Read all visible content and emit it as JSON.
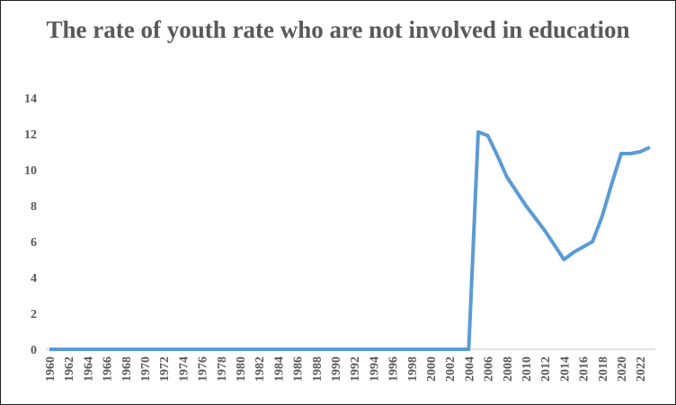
{
  "chart_data": {
    "type": "line",
    "title": "The rate of youth rate who are not involved in education",
    "xlabel": "",
    "ylabel": "",
    "ylim": [
      0,
      14
    ],
    "yticks": [
      0,
      2,
      4,
      6,
      8,
      10,
      12,
      14
    ],
    "xlim": [
      1960,
      2023
    ],
    "xtick_labels": [
      "1960",
      "1962",
      "1964",
      "1966",
      "1968",
      "1970",
      "1972",
      "1974",
      "1976",
      "1978",
      "1980",
      "1982",
      "1984",
      "1986",
      "1988",
      "1990",
      "1992",
      "1994",
      "1996",
      "1998",
      "2000",
      "2002",
      "2004",
      "2006",
      "2008",
      "2010",
      "2012",
      "2014",
      "2016",
      "2018",
      "2020",
      "2022"
    ],
    "grid": false,
    "legend": "none",
    "series_color": "#5B9BD5",
    "series": [
      {
        "x": [
          1960,
          1961,
          1962,
          1963,
          1964,
          1965,
          1966,
          1967,
          1968,
          1969,
          1970,
          1971,
          1972,
          1973,
          1974,
          1975,
          1976,
          1977,
          1978,
          1979,
          1980,
          1981,
          1982,
          1983,
          1984,
          1985,
          1986,
          1987,
          1988,
          1989,
          1990,
          1991,
          1992,
          1993,
          1994,
          1995,
          1996,
          1997,
          1998,
          1999,
          2000,
          2001,
          2002,
          2003,
          2004,
          2005,
          2006,
          2007,
          2008,
          2009,
          2010,
          2011,
          2012,
          2013,
          2014,
          2015,
          2016,
          2017,
          2018,
          2019,
          2020,
          2021,
          2022,
          2023
        ],
        "values": [
          0,
          0,
          0,
          0,
          0,
          0,
          0,
          0,
          0,
          0,
          0,
          0,
          0,
          0,
          0,
          0,
          0,
          0,
          0,
          0,
          0,
          0,
          0,
          0,
          0,
          0,
          0,
          0,
          0,
          0,
          0,
          0,
          0,
          0,
          0,
          0,
          0,
          0,
          0,
          0,
          0,
          0,
          0,
          0,
          0,
          12.1,
          11.9,
          10.8,
          9.6,
          8.8,
          8.0,
          7.3,
          6.6,
          5.8,
          5.0,
          5.4,
          5.7,
          6.0,
          7.4,
          9.2,
          10.9,
          10.9,
          11.0,
          11.25
        ]
      }
    ]
  }
}
